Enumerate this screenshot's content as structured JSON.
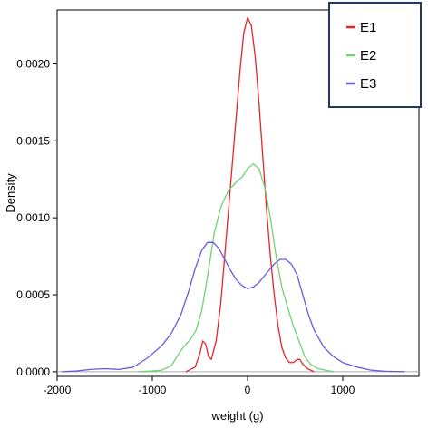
{
  "chart_data": {
    "type": "line",
    "title": "",
    "xlabel": "weight (g)",
    "ylabel": "Density",
    "xlim": [
      -2000,
      1800
    ],
    "ylim": [
      -3e-05,
      0.00235
    ],
    "x_ticks": [
      -2000,
      -1000,
      0,
      1000
    ],
    "x_tick_labels": [
      "-2000",
      "-1000",
      "0",
      "1000"
    ],
    "y_ticks": [
      0,
      0.0005,
      0.001,
      0.0015,
      0.002
    ],
    "y_tick_labels": [
      "0.0000",
      "0.0005",
      "0.0010",
      "0.0015",
      "0.0020"
    ],
    "baseline": 0,
    "grid": false,
    "legend_position": "top-right",
    "series": [
      {
        "name": "E1",
        "color": "#e8232b",
        "points": [
          [
            -650,
            0
          ],
          [
            -550,
            3e-05
          ],
          [
            -500,
            0.00012
          ],
          [
            -470,
            0.0002
          ],
          [
            -440,
            0.00018
          ],
          [
            -410,
            0.0001
          ],
          [
            -380,
            8e-05
          ],
          [
            -330,
            0.0002
          ],
          [
            -280,
            0.00045
          ],
          [
            -240,
            0.00075
          ],
          [
            -200,
            0.00105
          ],
          [
            -160,
            0.00135
          ],
          [
            -120,
            0.00165
          ],
          [
            -80,
            0.00195
          ],
          [
            -40,
            0.0022
          ],
          [
            0,
            0.0023
          ],
          [
            40,
            0.00225
          ],
          [
            80,
            0.00205
          ],
          [
            120,
            0.00175
          ],
          [
            160,
            0.0014
          ],
          [
            200,
            0.00105
          ],
          [
            240,
            0.00075
          ],
          [
            280,
            0.0005
          ],
          [
            320,
            0.0003
          ],
          [
            360,
            0.00016
          ],
          [
            400,
            9e-05
          ],
          [
            440,
            6e-05
          ],
          [
            480,
            6e-05
          ],
          [
            520,
            8e-05
          ],
          [
            550,
            8e-05
          ],
          [
            580,
            5e-05
          ],
          [
            630,
            2e-05
          ],
          [
            700,
            0
          ]
        ]
      },
      {
        "name": "E2",
        "color": "#6fd36f",
        "points": [
          [
            -1150,
            0
          ],
          [
            -1000,
            5e-06
          ],
          [
            -900,
            1e-05
          ],
          [
            -800,
            4e-05
          ],
          [
            -720,
            0.00012
          ],
          [
            -660,
            0.00017
          ],
          [
            -600,
            0.00021
          ],
          [
            -540,
            0.00027
          ],
          [
            -480,
            0.0004
          ],
          [
            -420,
            0.00062
          ],
          [
            -350,
            0.0009
          ],
          [
            -280,
            0.00107
          ],
          [
            -200,
            0.00118
          ],
          [
            -120,
            0.00123
          ],
          [
            -50,
            0.00127
          ],
          [
            0,
            0.00132
          ],
          [
            60,
            0.00135
          ],
          [
            120,
            0.00132
          ],
          [
            180,
            0.0012
          ],
          [
            240,
            0.001
          ],
          [
            300,
            0.00075
          ],
          [
            360,
            0.00055
          ],
          [
            420,
            0.00042
          ],
          [
            480,
            0.0003
          ],
          [
            540,
            0.0002
          ],
          [
            600,
            0.0001
          ],
          [
            660,
            5e-05
          ],
          [
            740,
            2e-05
          ],
          [
            900,
            0
          ]
        ]
      },
      {
        "name": "E3",
        "color": "#6a5ae0",
        "points": [
          [
            -1950,
            0
          ],
          [
            -1800,
            5e-06
          ],
          [
            -1650,
            1.5e-05
          ],
          [
            -1500,
            2e-05
          ],
          [
            -1350,
            1.5e-05
          ],
          [
            -1200,
            3e-05
          ],
          [
            -1050,
            9e-05
          ],
          [
            -900,
            0.00017
          ],
          [
            -800,
            0.00025
          ],
          [
            -700,
            0.00037
          ],
          [
            -620,
            0.00052
          ],
          [
            -550,
            0.00067
          ],
          [
            -480,
            0.00079
          ],
          [
            -420,
            0.00084
          ],
          [
            -360,
            0.00084
          ],
          [
            -300,
            0.0008
          ],
          [
            -240,
            0.00073
          ],
          [
            -180,
            0.00066
          ],
          [
            -120,
            0.0006
          ],
          [
            -60,
            0.00056
          ],
          [
            0,
            0.00054
          ],
          [
            60,
            0.00055
          ],
          [
            120,
            0.00058
          ],
          [
            200,
            0.00064
          ],
          [
            280,
            0.0007
          ],
          [
            340,
            0.00073
          ],
          [
            400,
            0.00073
          ],
          [
            460,
            0.0007
          ],
          [
            520,
            0.00063
          ],
          [
            580,
            0.0005
          ],
          [
            640,
            0.00037
          ],
          [
            700,
            0.00027
          ],
          [
            800,
            0.00016
          ],
          [
            900,
            0.0001
          ],
          [
            1000,
            6e-05
          ],
          [
            1150,
            3e-05
          ],
          [
            1300,
            1e-05
          ],
          [
            1450,
            3e-06
          ],
          [
            1650,
            0
          ]
        ]
      }
    ]
  }
}
